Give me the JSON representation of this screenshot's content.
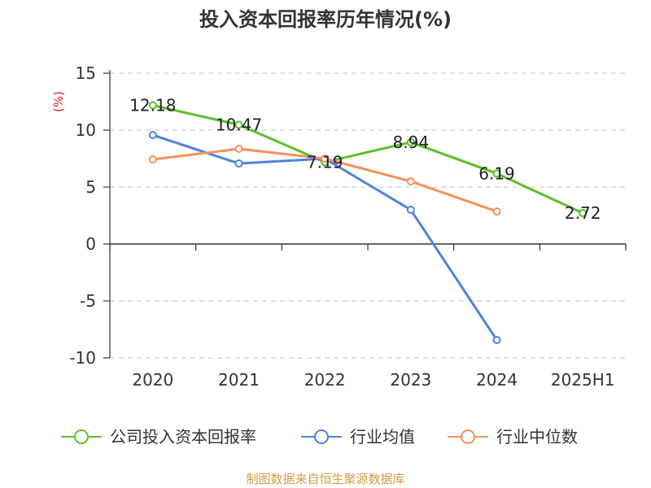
{
  "footer": {
    "source": "制图数据来自恒生聚源数据库",
    "color": "#c9a04a"
  },
  "axis_colors": {
    "ylabel": "#e02020",
    "axis": "#333333",
    "grid": "#cccccc"
  },
  "chart_data": {
    "type": "line",
    "title": "投入资本回报率历年情况(%)",
    "xlabel": "",
    "ylabel": "(%)",
    "categories": [
      "2020",
      "2021",
      "2022",
      "2023",
      "2024",
      "2025H1"
    ],
    "ylim": [
      -10,
      15
    ],
    "yticks": [
      15,
      10,
      5,
      0,
      -5,
      -10
    ],
    "grid": "horizontal-dashed",
    "legend": "bottom",
    "series": [
      {
        "name": "公司投入资本回报率",
        "color": "#5cbf2a",
        "values": [
          12.18,
          10.47,
          7.19,
          8.94,
          6.19,
          2.72
        ],
        "show_labels": true
      },
      {
        "name": "行业均值",
        "color": "#4f82dd",
        "values": [
          9.57,
          7.07,
          7.5,
          3.0,
          -8.43,
          null
        ],
        "show_labels": false
      },
      {
        "name": "行业中位数",
        "color": "#f5915c",
        "values": [
          7.43,
          8.36,
          7.5,
          5.5,
          2.86,
          null
        ],
        "show_labels": false
      }
    ]
  }
}
